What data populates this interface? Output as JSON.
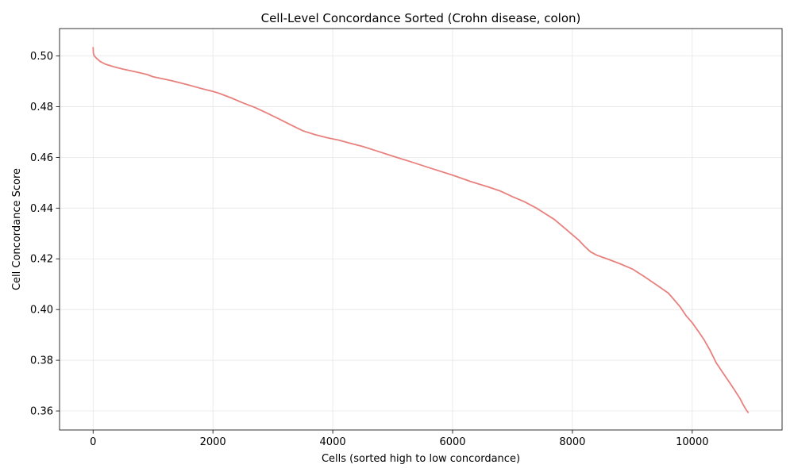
{
  "chart_data": {
    "type": "line",
    "title": "Cell-Level Concordance Sorted (Crohn disease, colon)",
    "xlabel": "Cells (sorted high to low concordance)",
    "ylabel": "Cell Concordance Score",
    "xlim": [
      -560,
      11500
    ],
    "ylim": [
      0.3525,
      0.5108
    ],
    "xticks": [
      0,
      2000,
      4000,
      6000,
      8000,
      10000
    ],
    "xtick_labels": [
      "0",
      "2000",
      "4000",
      "6000",
      "8000",
      "10000"
    ],
    "yticks": [
      0.36,
      0.38,
      0.4,
      0.42,
      0.44,
      0.46,
      0.48,
      0.5
    ],
    "ytick_labels": [
      "0.36",
      "0.38",
      "0.40",
      "0.42",
      "0.44",
      "0.46",
      "0.48",
      "0.50"
    ],
    "grid": true,
    "series": [
      {
        "color": "#e8817d",
        "x": [
          0,
          5,
          20,
          60,
          120,
          200,
          350,
          500,
          700,
          900,
          1000,
          1300,
          1600,
          1800,
          2000,
          2100,
          2300,
          2500,
          2700,
          2900,
          3100,
          3300,
          3500,
          3700,
          3900,
          4100,
          4300,
          4500,
          4700,
          5000,
          5300,
          5600,
          6000,
          6300,
          6600,
          6800,
          7000,
          7200,
          7400,
          7500,
          7700,
          7900,
          8100,
          8200,
          8300,
          8400,
          8600,
          8800,
          9000,
          9200,
          9400,
          9600,
          9700,
          9800,
          9900,
          10000,
          10100,
          10200,
          10300,
          10400,
          10500,
          10600,
          10700,
          10800,
          10850,
          10900,
          10920,
          10930,
          10940
        ],
        "y": [
          0.5035,
          0.501,
          0.5,
          0.499,
          0.4978,
          0.4968,
          0.4957,
          0.4948,
          0.4938,
          0.4927,
          0.4918,
          0.4903,
          0.4885,
          0.4872,
          0.486,
          0.4853,
          0.4835,
          0.4815,
          0.4797,
          0.4775,
          0.4752,
          0.4728,
          0.4705,
          0.469,
          0.4678,
          0.4668,
          0.4655,
          0.4643,
          0.4628,
          0.4605,
          0.4583,
          0.456,
          0.453,
          0.4505,
          0.4483,
          0.4467,
          0.4445,
          0.4425,
          0.44,
          0.4385,
          0.4355,
          0.4315,
          0.4275,
          0.425,
          0.4228,
          0.4215,
          0.4198,
          0.418,
          0.416,
          0.413,
          0.4098,
          0.4065,
          0.4038,
          0.401,
          0.3975,
          0.3948,
          0.3915,
          0.388,
          0.3838,
          0.379,
          0.3755,
          0.372,
          0.3685,
          0.3648,
          0.3625,
          0.3605,
          0.3598,
          0.3595,
          0.3593
        ]
      }
    ]
  }
}
